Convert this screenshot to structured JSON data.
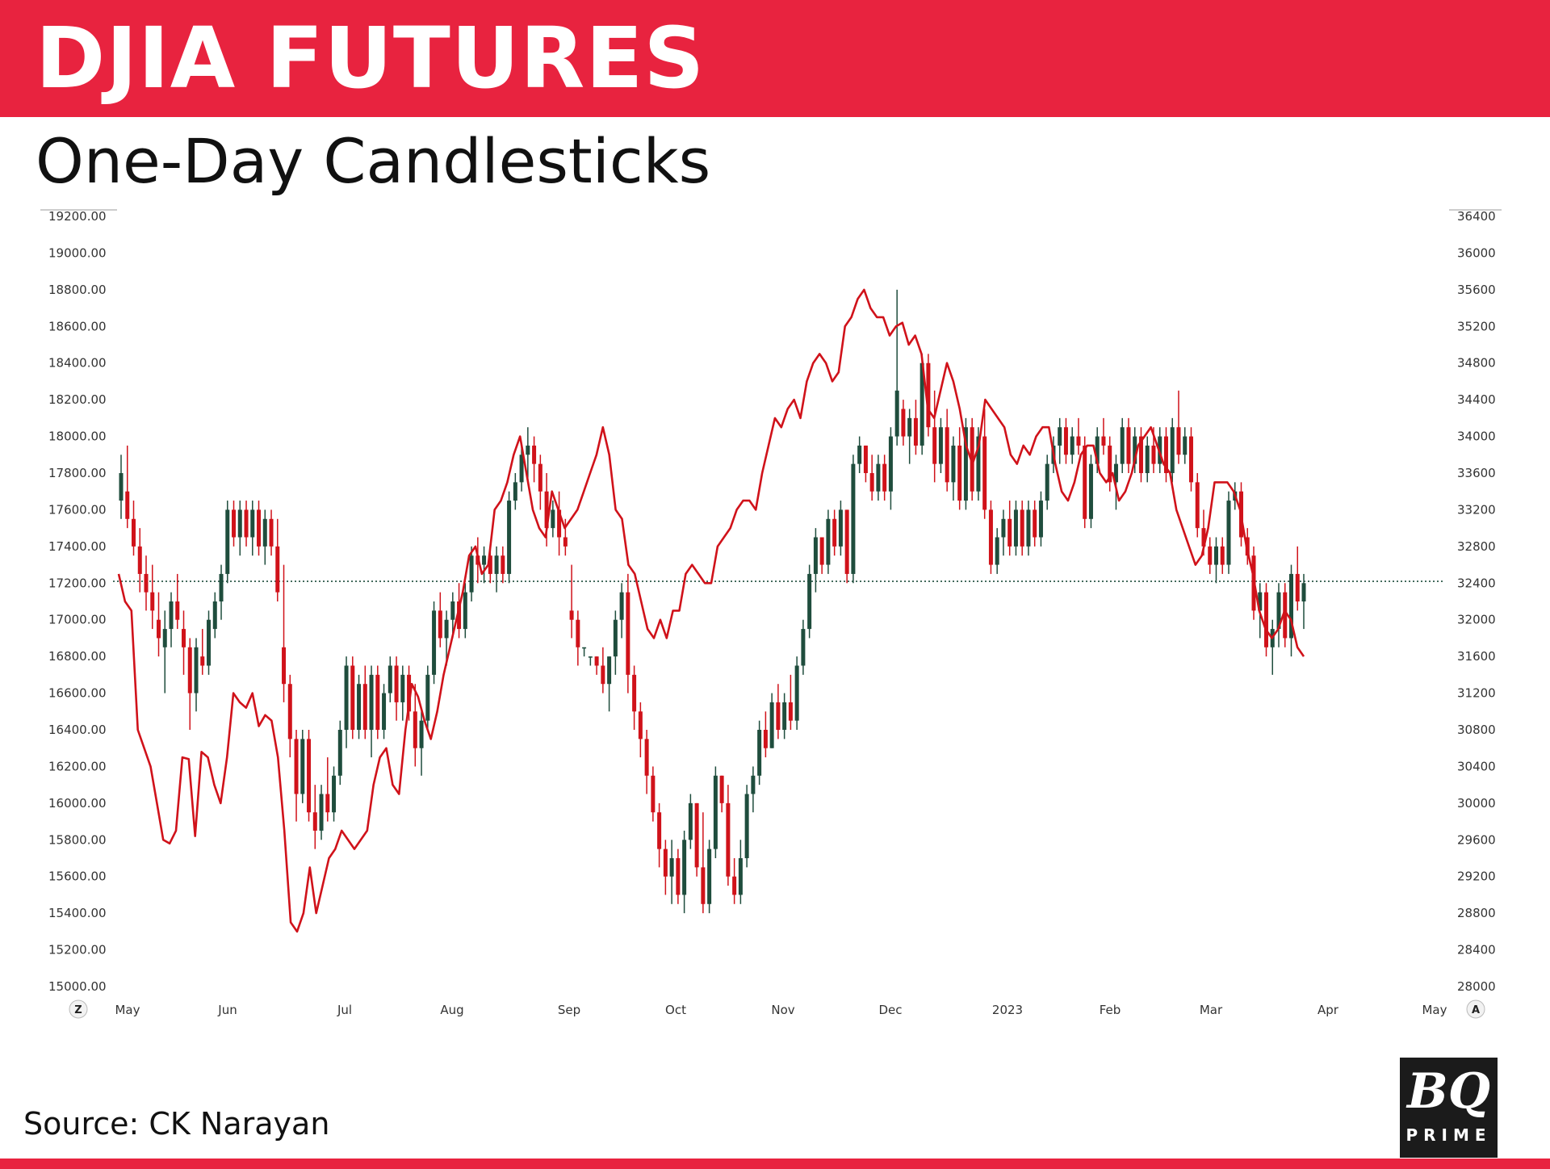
{
  "header": {
    "title": "DJIA FUTURES",
    "subtitle": "One-Day Candlesticks"
  },
  "source_text": "Source: CK Narayan",
  "logo": {
    "line1": "BQ",
    "line2": "PRIME"
  },
  "colors": {
    "brand_red": "#e8233f",
    "up_candle": "#1f4d3d",
    "down_candle": "#d0121a",
    "ratio_line": "#d0121a",
    "ref_line": "#1f4d3d"
  },
  "nav_buttons": {
    "left": "Z",
    "right": "A"
  },
  "chart_data": {
    "type": "candlestick",
    "title": "DJIA FUTURES",
    "subtitle": "One-Day Candlesticks",
    "x_axis": {
      "months": [
        "May",
        "Jun",
        "Jul",
        "Aug",
        "Sep",
        "Oct",
        "Nov",
        "Dec",
        "2023",
        "Feb",
        "Mar",
        "Apr",
        "May"
      ]
    },
    "left_axis": {
      "ticks": [
        "19200.00",
        "19000.00",
        "18800.00",
        "18600.00",
        "18400.00",
        "18200.00",
        "18000.00",
        "17800.00",
        "17600.00",
        "17400.00",
        "17200.00",
        "17000.00",
        "16800.00",
        "16600.00",
        "16400.00",
        "16200.00",
        "16000.00",
        "15800.00",
        "15600.00",
        "15400.00",
        "15200.00",
        "15000.00"
      ],
      "range": [
        15000,
        19200
      ]
    },
    "right_axis": {
      "ticks": [
        "36400",
        "36000",
        "35600",
        "35200",
        "34800",
        "34400",
        "34000",
        "33600",
        "33200",
        "32800",
        "32400",
        "32000",
        "31600",
        "31200",
        "30800",
        "30400",
        "30000",
        "29600",
        "29200",
        "28800",
        "28400",
        "28000"
      ],
      "range": [
        28000,
        36400
      ]
    },
    "reference_line": {
      "value": 32420,
      "style": "dotted"
    },
    "candles_right_axis_ohlc_approx": [
      [
        33300,
        33800,
        33100,
        33600
      ],
      [
        33400,
        33900,
        33000,
        33100
      ],
      [
        33100,
        33300,
        32700,
        32800
      ],
      [
        32800,
        33000,
        32300,
        32500
      ],
      [
        32500,
        32700,
        32100,
        32300
      ],
      [
        32300,
        32600,
        31900,
        32100
      ],
      [
        32000,
        32300,
        31600,
        31800
      ],
      [
        31700,
        32100,
        31200,
        31900
      ],
      [
        31900,
        32300,
        31700,
        32200
      ],
      [
        32200,
        32500,
        31900,
        32000
      ],
      [
        31900,
        32100,
        31400,
        31700
      ],
      [
        31700,
        31800,
        30800,
        31200
      ],
      [
        31200,
        31800,
        31000,
        31700
      ],
      [
        31600,
        31900,
        31400,
        31500
      ],
      [
        31500,
        32100,
        31400,
        32000
      ],
      [
        31900,
        32300,
        31800,
        32200
      ],
      [
        32200,
        32600,
        32000,
        32500
      ],
      [
        32500,
        33300,
        32400,
        33200
      ],
      [
        33200,
        33300,
        32800,
        32900
      ],
      [
        32900,
        33300,
        32700,
        33200
      ],
      [
        33200,
        33300,
        32800,
        32900
      ],
      [
        32900,
        33300,
        32700,
        33200
      ],
      [
        33200,
        33300,
        32700,
        32800
      ],
      [
        32800,
        33200,
        32600,
        33100
      ],
      [
        33100,
        33200,
        32700,
        32800
      ],
      [
        32800,
        33100,
        32200,
        32300
      ],
      [
        31700,
        32600,
        31100,
        31300
      ],
      [
        31300,
        31400,
        30500,
        30700
      ],
      [
        30700,
        30800,
        29800,
        30100
      ],
      [
        30100,
        30800,
        30000,
        30700
      ],
      [
        30700,
        30800,
        29800,
        29900
      ],
      [
        29900,
        30200,
        29500,
        29700
      ],
      [
        29700,
        30200,
        29600,
        30100
      ],
      [
        30100,
        30500,
        29800,
        29900
      ],
      [
        29900,
        30400,
        29800,
        30300
      ],
      [
        30300,
        30900,
        30200,
        30800
      ],
      [
        30800,
        31600,
        30600,
        31500
      ],
      [
        31500,
        31600,
        30700,
        30800
      ],
      [
        30800,
        31400,
        30700,
        31300
      ],
      [
        31300,
        31500,
        30700,
        30800
      ],
      [
        30800,
        31500,
        30500,
        31400
      ],
      [
        31400,
        31500,
        30700,
        30800
      ],
      [
        30800,
        31300,
        30700,
        31200
      ],
      [
        31200,
        31600,
        31100,
        31500
      ],
      [
        31500,
        31600,
        30900,
        31100
      ],
      [
        31100,
        31500,
        30900,
        31400
      ],
      [
        31400,
        31500,
        30900,
        31000
      ],
      [
        31000,
        31300,
        30400,
        30600
      ],
      [
        30600,
        31000,
        30300,
        30900
      ],
      [
        30900,
        31500,
        30800,
        31400
      ],
      [
        31400,
        32200,
        31300,
        32100
      ],
      [
        32100,
        32300,
        31700,
        31800
      ],
      [
        31800,
        32100,
        31500,
        32000
      ],
      [
        32000,
        32300,
        31800,
        32200
      ],
      [
        32200,
        32400,
        31800,
        31900
      ],
      [
        31900,
        32400,
        31800,
        32300
      ],
      [
        32300,
        32800,
        32200,
        32700
      ],
      [
        32700,
        32900,
        32400,
        32600
      ],
      [
        32600,
        32800,
        32400,
        32700
      ],
      [
        32700,
        32800,
        32400,
        32500
      ],
      [
        32500,
        32800,
        32300,
        32700
      ],
      [
        32700,
        32800,
        32400,
        32500
      ],
      [
        32500,
        33400,
        32400,
        33300
      ],
      [
        33300,
        33600,
        33200,
        33500
      ],
      [
        33500,
        33900,
        33400,
        33800
      ],
      [
        33800,
        34100,
        33500,
        33900
      ],
      [
        33900,
        34000,
        33500,
        33700
      ],
      [
        33700,
        33800,
        33200,
        33400
      ],
      [
        33400,
        33600,
        32800,
        33000
      ],
      [
        33000,
        33300,
        32900,
        33200
      ],
      [
        33200,
        33400,
        32700,
        32900
      ],
      [
        32900,
        33100,
        32700,
        32800
      ],
      [
        32100,
        32600,
        31800,
        32000
      ],
      [
        32000,
        32100,
        31500,
        31700
      ],
      [
        31700,
        31700,
        31600,
        31700
      ],
      [
        31600,
        31600,
        31500,
        31600
      ],
      [
        31600,
        31600,
        31400,
        31500
      ],
      [
        31500,
        31700,
        31200,
        31300
      ],
      [
        31300,
        31600,
        31000,
        31600
      ],
      [
        31600,
        32100,
        31400,
        32000
      ],
      [
        32000,
        32400,
        31800,
        32300
      ],
      [
        32300,
        32500,
        31200,
        31400
      ],
      [
        31400,
        31500,
        30800,
        31000
      ],
      [
        31000,
        31100,
        30500,
        30700
      ],
      [
        30700,
        30800,
        30100,
        30300
      ],
      [
        30300,
        30400,
        29800,
        29900
      ],
      [
        29900,
        30000,
        29300,
        29500
      ],
      [
        29500,
        29600,
        29000,
        29200
      ],
      [
        29200,
        29600,
        28900,
        29400
      ],
      [
        29400,
        29500,
        28900,
        29000
      ],
      [
        29000,
        29700,
        28800,
        29600
      ],
      [
        29600,
        30100,
        29500,
        30000
      ],
      [
        30000,
        30000,
        29200,
        29300
      ],
      [
        29300,
        29900,
        28800,
        28900
      ],
      [
        28900,
        29600,
        28800,
        29500
      ],
      [
        29500,
        30400,
        29400,
        30300
      ],
      [
        30300,
        30300,
        29900,
        30000
      ],
      [
        30000,
        30200,
        29100,
        29200
      ],
      [
        29200,
        29400,
        28900,
        29000
      ],
      [
        29000,
        29600,
        28900,
        29400
      ],
      [
        29400,
        30200,
        29300,
        30100
      ],
      [
        30100,
        30400,
        29900,
        30300
      ],
      [
        30300,
        30900,
        30200,
        30800
      ],
      [
        30800,
        31000,
        30500,
        30600
      ],
      [
        30600,
        31200,
        30600,
        31100
      ],
      [
        31100,
        31300,
        30700,
        30800
      ],
      [
        30800,
        31200,
        30700,
        31100
      ],
      [
        31100,
        31400,
        30800,
        30900
      ],
      [
        30900,
        31600,
        30800,
        31500
      ],
      [
        31500,
        32000,
        31400,
        31900
      ],
      [
        31900,
        32600,
        31800,
        32500
      ],
      [
        32500,
        33000,
        32300,
        32900
      ],
      [
        32900,
        32900,
        32500,
        32600
      ],
      [
        32600,
        33200,
        32500,
        33100
      ],
      [
        33100,
        33200,
        32700,
        32800
      ],
      [
        32800,
        33300,
        32700,
        33200
      ],
      [
        33200,
        33200,
        32400,
        32500
      ],
      [
        32500,
        33800,
        32400,
        33700
      ],
      [
        33700,
        34000,
        33600,
        33900
      ],
      [
        33900,
        33900,
        33500,
        33600
      ],
      [
        33600,
        33800,
        33300,
        33400
      ],
      [
        33400,
        33800,
        33300,
        33700
      ],
      [
        33700,
        33800,
        33300,
        33400
      ],
      [
        33400,
        34100,
        33200,
        34000
      ],
      [
        34000,
        35600,
        33900,
        34500
      ],
      [
        34300,
        34400,
        33900,
        34000
      ],
      [
        34000,
        34300,
        33700,
        34200
      ],
      [
        34200,
        34400,
        33800,
        33900
      ],
      [
        33900,
        34900,
        33800,
        34800
      ],
      [
        34800,
        34900,
        34000,
        34100
      ],
      [
        34100,
        34500,
        33500,
        33700
      ],
      [
        33700,
        34200,
        33600,
        34100
      ],
      [
        34100,
        34300,
        33400,
        33500
      ],
      [
        33500,
        34000,
        33300,
        33900
      ],
      [
        33900,
        34100,
        33200,
        33300
      ],
      [
        33300,
        34200,
        33200,
        34100
      ],
      [
        34100,
        34200,
        33300,
        33400
      ],
      [
        33400,
        34100,
        33300,
        34000
      ],
      [
        34000,
        34300,
        33100,
        33200
      ],
      [
        33200,
        33300,
        32500,
        32600
      ],
      [
        32600,
        33000,
        32500,
        32900
      ],
      [
        32900,
        33200,
        32700,
        33100
      ],
      [
        33100,
        33300,
        32700,
        32800
      ],
      [
        32800,
        33300,
        32700,
        33200
      ],
      [
        33200,
        33300,
        32700,
        32800
      ],
      [
        32800,
        33300,
        32700,
        33200
      ],
      [
        33200,
        33300,
        32800,
        32900
      ],
      [
        32900,
        33400,
        32800,
        33300
      ],
      [
        33300,
        33800,
        33200,
        33700
      ],
      [
        33700,
        34000,
        33600,
        33900
      ],
      [
        33900,
        34200,
        33700,
        34100
      ],
      [
        34100,
        34200,
        33700,
        33800
      ],
      [
        33800,
        34100,
        33700,
        34000
      ],
      [
        34000,
        34200,
        33800,
        33900
      ],
      [
        33900,
        34000,
        33000,
        33100
      ],
      [
        33100,
        33800,
        33000,
        33700
      ],
      [
        33700,
        34100,
        33600,
        34000
      ],
      [
        34000,
        34200,
        33800,
        33900
      ],
      [
        33900,
        34000,
        33400,
        33500
      ],
      [
        33500,
        33800,
        33200,
        33700
      ],
      [
        33700,
        34200,
        33600,
        34100
      ],
      [
        34100,
        34200,
        33600,
        33700
      ],
      [
        33700,
        34100,
        33600,
        34000
      ],
      [
        34000,
        34100,
        33500,
        33600
      ],
      [
        33600,
        34000,
        33500,
        33900
      ],
      [
        33900,
        34100,
        33600,
        33700
      ],
      [
        33700,
        34100,
        33600,
        34000
      ],
      [
        34000,
        34100,
        33500,
        33600
      ],
      [
        33600,
        34200,
        33500,
        34100
      ],
      [
        34100,
        34500,
        33700,
        33800
      ],
      [
        33800,
        34100,
        33700,
        34000
      ],
      [
        34000,
        34100,
        33400,
        33500
      ],
      [
        33500,
        33600,
        32900,
        33000
      ],
      [
        33000,
        33200,
        32700,
        32800
      ],
      [
        32800,
        32900,
        32500,
        32600
      ],
      [
        32600,
        32900,
        32400,
        32800
      ],
      [
        32800,
        32900,
        32500,
        32600
      ],
      [
        32600,
        33400,
        32500,
        33300
      ],
      [
        33300,
        33500,
        33200,
        33400
      ],
      [
        33400,
        33500,
        32800,
        32900
      ],
      [
        32900,
        33000,
        32600,
        32700
      ],
      [
        32700,
        32800,
        32000,
        32100
      ],
      [
        32100,
        32400,
        31800,
        32300
      ],
      [
        32300,
        32400,
        31600,
        31700
      ],
      [
        31700,
        32000,
        31400,
        31900
      ],
      [
        31900,
        32400,
        31700,
        32300
      ],
      [
        32300,
        32400,
        31700,
        31800
      ],
      [
        31800,
        32600,
        31600,
        32500
      ],
      [
        32500,
        32800,
        32100,
        32200
      ],
      [
        32200,
        32500,
        31900,
        32400
      ]
    ],
    "ratio_line_left_axis_approx": [
      17250,
      17100,
      17050,
      16400,
      16300,
      16200,
      16000,
      15800,
      15780,
      15850,
      16250,
      16240,
      15820,
      16280,
      16250,
      16100,
      16000,
      16250,
      16600,
      16550,
      16520,
      16600,
      16420,
      16480,
      16450,
      16250,
      15850,
      15350,
      15300,
      15400,
      15650,
      15400,
      15550,
      15700,
      15750,
      15850,
      15800,
      15750,
      15800,
      15850,
      16100,
      16250,
      16300,
      16100,
      16050,
      16400,
      16650,
      16580,
      16450,
      16350,
      16500,
      16700,
      16850,
      17000,
      17150,
      17350,
      17400,
      17250,
      17300,
      17600,
      17650,
      17750,
      17900,
      18000,
      17800,
      17600,
      17500,
      17450,
      17700,
      17600,
      17500,
      17550,
      17600,
      17700,
      17800,
      17900,
      18050,
      17900,
      17600,
      17550,
      17300,
      17250,
      17100,
      16950,
      16900,
      17000,
      16900,
      17050,
      17050,
      17250,
      17300,
      17250,
      17200,
      17200,
      17400,
      17450,
      17500,
      17600,
      17650,
      17650,
      17600,
      17800,
      17950,
      18100,
      18050,
      18150,
      18200,
      18100,
      18300,
      18400,
      18450,
      18400,
      18300,
      18350,
      18600,
      18650,
      18750,
      18800,
      18700,
      18650,
      18650,
      18550,
      18600,
      18620,
      18500,
      18550,
      18450,
      18150,
      18100,
      18250,
      18400,
      18300,
      18150,
      17950,
      17850,
      17950,
      18200,
      18150,
      18100,
      18050,
      17900,
      17850,
      17950,
      17900,
      18000,
      18050,
      18050,
      17850,
      17700,
      17650,
      17750,
      17900,
      17950,
      17950,
      17800,
      17750,
      17800,
      17650,
      17700,
      17800,
      17950,
      18000,
      18050,
      17950,
      17850,
      17800,
      17600,
      17500,
      17400,
      17300,
      17350,
      17500,
      17750,
      17750,
      17750,
      17700,
      17600,
      17400,
      17250,
      17050,
      16950,
      16900,
      16950,
      17050,
      17000,
      16850,
      16800
    ]
  }
}
